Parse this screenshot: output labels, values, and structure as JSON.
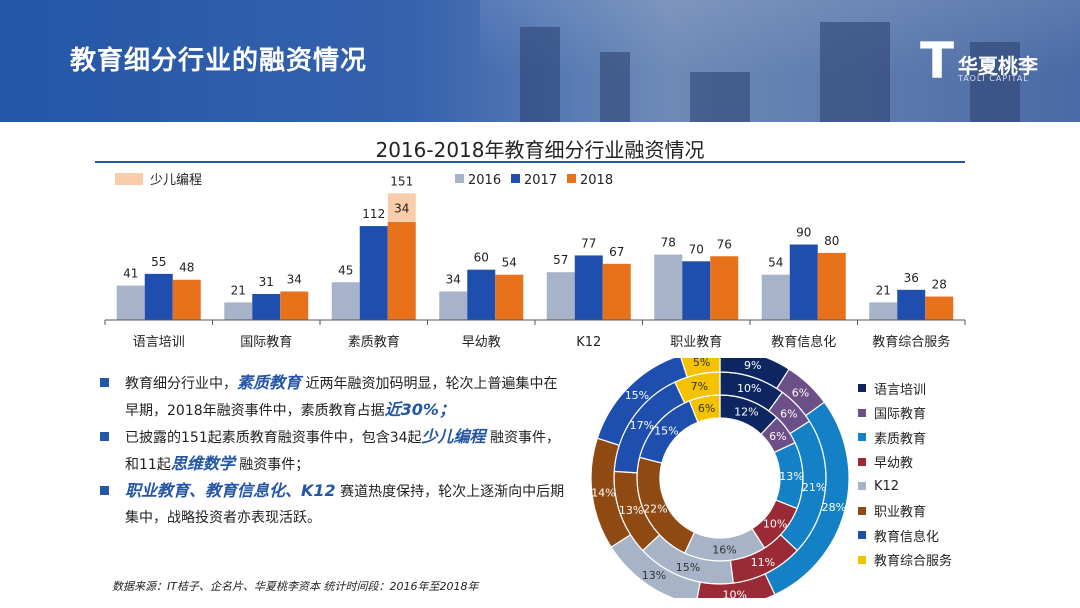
{
  "page_title": "教育细分行业的融资情况",
  "logo": {
    "mark": "T",
    "name": "华夏桃李",
    "subtitle": "TAOLI CAPITAL"
  },
  "chart_title": "2016-2018年教育细分行业融资情况",
  "colors": {
    "y2016": "#a6b3c9",
    "y2017": "#1f4fae",
    "y2018": "#e8721c",
    "programming": "#f9ccaa",
    "axis": "#555555"
  },
  "bullets": [
    {
      "parts": [
        {
          "t": "教育细分行业中，",
          "hl": false
        },
        {
          "t": "素质教育",
          "hl": true
        },
        {
          "t": " 近两年融资加码明显，轮次上普遍集中在早期，2018年融资事件中，素质教育占据",
          "hl": false
        },
        {
          "t": "近30%；",
          "hl": true
        }
      ]
    },
    {
      "parts": [
        {
          "t": "已披露的151起素质教育融资事件中，包含34起",
          "hl": false
        },
        {
          "t": "少儿编程",
          "hl": true
        },
        {
          "t": " 融资事件，和11起",
          "hl": false
        },
        {
          "t": "思维数学",
          "hl": true
        },
        {
          "t": " 融资事件；",
          "hl": false
        }
      ]
    },
    {
      "parts": [
        {
          "t": "职业教育、教育信息化、K12",
          "hl": true
        },
        {
          "t": " 赛道热度保持，轮次上逐渐向中后期集中，战略投资者亦表现活跃。",
          "hl": false
        }
      ]
    }
  ],
  "source": "数据来源：IT桔子、企名片、华夏桃李资本     统计时间段：2016年至2018年",
  "chart_data": [
    {
      "type": "bar",
      "title": "2016-2018年教育细分行业融资情况",
      "categories": [
        "语言培训",
        "国际教育",
        "素质教育",
        "早幼教",
        "K12",
        "职业教育",
        "教育信息化",
        "教育综合服务"
      ],
      "series": [
        {
          "name": "2016",
          "values": [
            41,
            21,
            45,
            34,
            57,
            78,
            54,
            21
          ]
        },
        {
          "name": "2017",
          "values": [
            55,
            31,
            112,
            60,
            77,
            70,
            90,
            36
          ]
        },
        {
          "name": "2018",
          "values": [
            48,
            34,
            117,
            54,
            67,
            76,
            80,
            28
          ]
        }
      ],
      "stacked_extra": {
        "name": "少儿编程",
        "category": "素质教育",
        "series": "2018",
        "value": 34,
        "total_label": 151
      },
      "legend": [
        "2016",
        "2017",
        "2018"
      ],
      "legend_extra": "少儿编程",
      "ylim": [
        0,
        155
      ],
      "grid": false
    },
    {
      "type": "pie",
      "variant": "donut",
      "rings": [
        {
          "name": "2016",
          "values": [
            12,
            6,
            13,
            10,
            16,
            22,
            15,
            6
          ]
        },
        {
          "name": "2017",
          "values": [
            10,
            6,
            21,
            11,
            15,
            13,
            17,
            7
          ]
        },
        {
          "name": "2018",
          "values": [
            9,
            6,
            28,
            10,
            13,
            14,
            15,
            5
          ]
        }
      ],
      "categories": [
        "语言培训",
        "国际教育",
        "素质教育",
        "早幼教",
        "K12",
        "职业教育",
        "教育信息化",
        "教育综合服务"
      ],
      "colors": [
        "#0d2560",
        "#6b4f86",
        "#1480c6",
        "#9a2a36",
        "#a7b3c7",
        "#8f4a13",
        "#1f4fae",
        "#f5c200"
      ],
      "unit": "%"
    }
  ]
}
